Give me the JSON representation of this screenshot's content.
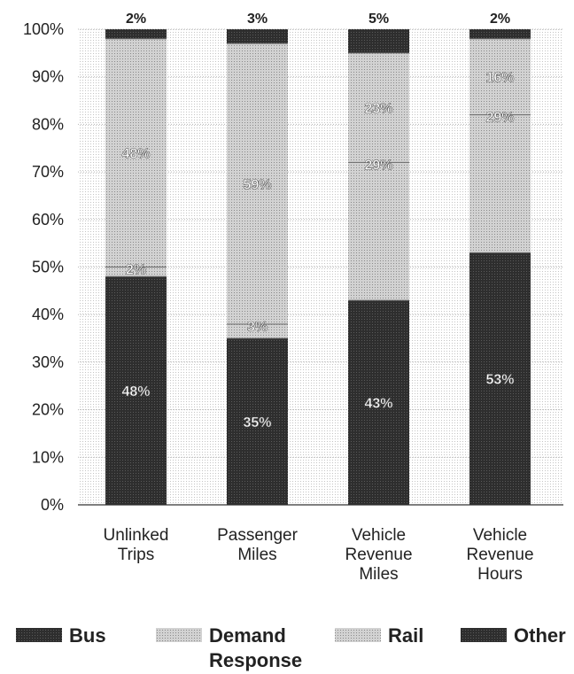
{
  "chart_data": {
    "type": "bar",
    "stacked": true,
    "categories": [
      [
        "Unlinked",
        "Trips"
      ],
      [
        "Passenger",
        "Miles"
      ],
      [
        "Vehicle",
        "Revenue",
        "Miles"
      ],
      [
        "Vehicle",
        "Revenue",
        "Hours"
      ]
    ],
    "series": [
      {
        "name": "Bus",
        "values": [
          48,
          35,
          43,
          53
        ],
        "labels": [
          "48%",
          "35%",
          "43%",
          "53%"
        ],
        "color": "#3a3a3a"
      },
      {
        "name": "Demand Response",
        "legend_lines": [
          "Demand",
          "Response"
        ],
        "values": [
          2,
          3,
          29,
          29
        ],
        "labels": [
          "2%",
          "3%",
          "29%",
          "29%"
        ],
        "color": "#b5b5b5"
      },
      {
        "name": "Rail",
        "values": [
          48,
          59,
          23,
          16
        ],
        "labels": [
          "48%",
          "59%",
          "23%",
          "16%"
        ],
        "color": "#c9c9c9"
      },
      {
        "name": "Other",
        "values": [
          2,
          3,
          5,
          2
        ],
        "labels": [
          "2%",
          "3%",
          "5%",
          "2%"
        ],
        "color": "#545454"
      }
    ],
    "y_ticks": [
      "0%",
      "10%",
      "20%",
      "30%",
      "40%",
      "50%",
      "60%",
      "70%",
      "80%",
      "90%",
      "100%"
    ],
    "ylim": [
      0,
      100
    ],
    "grid": true,
    "legend_position": "bottom"
  }
}
